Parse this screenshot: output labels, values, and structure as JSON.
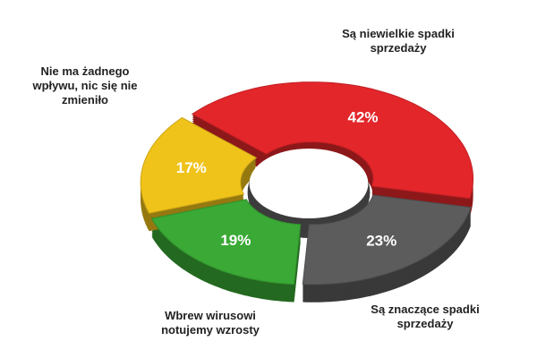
{
  "chart_data": {
    "type": "donut",
    "categories": [
      "Są niewielkie spadki sprzedaży",
      "Są znaczące spadki sprzedaży",
      "Wbrew wirusowi notujemy wzrosty",
      "Nie ma żadnego wpływu, nic się nie zmieniło"
    ],
    "values": [
      42,
      23,
      19,
      17
    ],
    "value_labels": [
      "42%",
      "23%",
      "19%",
      "17%"
    ],
    "colors": [
      "#e3262a",
      "#5c5c5c",
      "#3aa935",
      "#f0c31a"
    ]
  }
}
